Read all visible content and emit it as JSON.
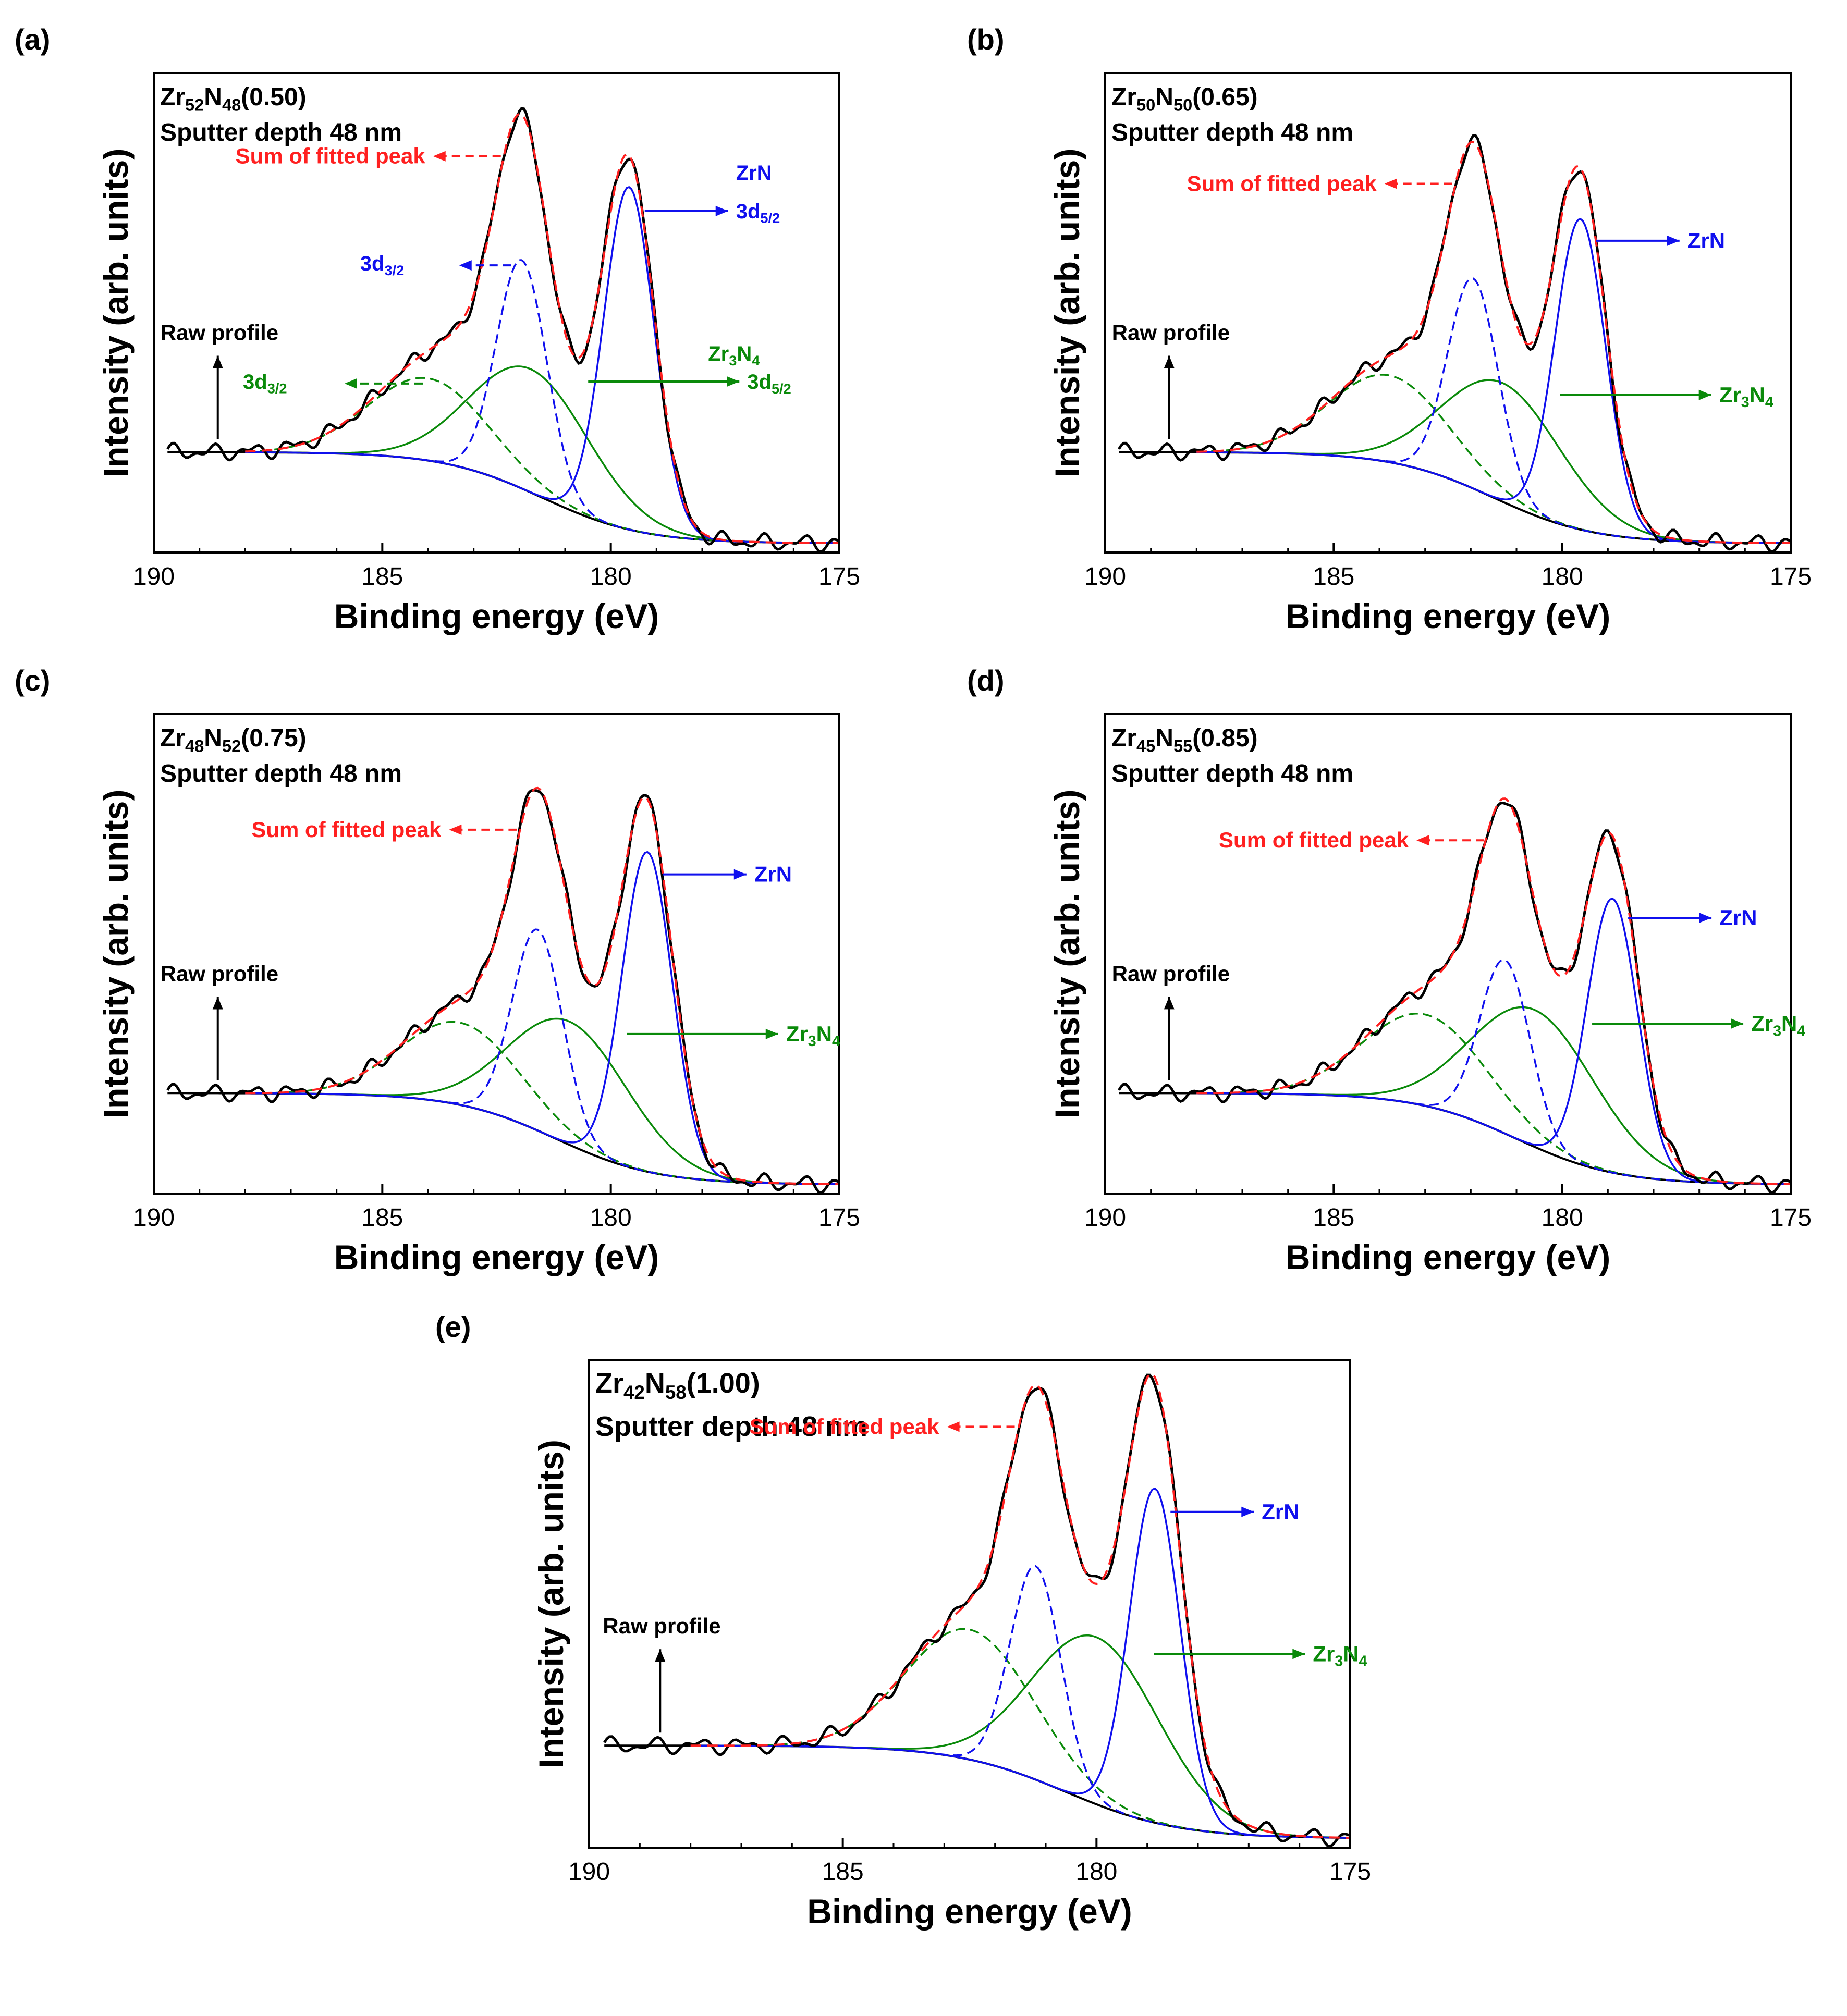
{
  "figure": {
    "description_labels": [
      "(a)",
      "(b)",
      "(c)",
      "(d)",
      "(e)"
    ]
  },
  "colors": {
    "raw": "#000000",
    "sum": "#ff2020",
    "zrn": "#1010ee",
    "zr3n4": "#0a8a0a"
  },
  "chart_data": [
    {
      "id": "a",
      "type": "line",
      "panel_label": "(a)",
      "sample_main": "Zr",
      "sample_sub1": "52",
      "sample_mid": "N",
      "sample_sub2": "48",
      "sample_tail": "(0.50)",
      "subtitle": "Sputter depth 48 nm",
      "xlabel": "Binding energy (eV)",
      "ylabel": "Intensity (arb. units)",
      "xlim": [
        190,
        175
      ],
      "ylim": [
        0,
        1.05
      ],
      "xticks": [
        "190",
        "185",
        "180",
        "175"
      ],
      "annotations": {
        "sum": "Sum of fitted peak",
        "raw": "Raw profile",
        "zrn": "ZrN",
        "zrn_3d52": "3d",
        "zrn_3d52_sub": "5/2",
        "zrn_3d32": "3d",
        "zrn_3d32_sub": "3/2",
        "zr3n4": "Zr",
        "zr3n4_sub1": "3",
        "zr3n4_mid": "N",
        "zr3n4_sub2": "4",
        "zr3n4_3d52": "3d",
        "zr3n4_3d52_sub": "5/2",
        "zr3n4_3d32": "3d",
        "zr3n4_3d32_sub": "3/2"
      },
      "peaks": {
        "zrn52": {
          "center": 179.6,
          "height": 0.75,
          "width": 0.55
        },
        "zrn32": {
          "center": 181.95,
          "height": 0.5,
          "width": 0.55
        },
        "zr3n4_52": {
          "center": 181.75,
          "height": 0.27,
          "width": 1.3
        },
        "zr3n4_32": {
          "center": 184.0,
          "height": 0.18,
          "width": 1.3
        }
      },
      "background": {
        "start": 0.22,
        "end": 0.02,
        "step_center": 181.5
      },
      "raw_start": 189.7,
      "fit_start": 188.0
    },
    {
      "id": "b",
      "type": "line",
      "panel_label": "(b)",
      "sample_main": "Zr",
      "sample_sub1": "50",
      "sample_mid": "N",
      "sample_sub2": "50",
      "sample_tail": "(0.65)",
      "subtitle": "Sputter depth 48 nm",
      "xlabel": "Binding energy (eV)",
      "ylabel": "Intensity (arb. units)",
      "xlim": [
        190,
        175
      ],
      "ylim": [
        0,
        1.05
      ],
      "xticks": [
        "190",
        "185",
        "180",
        "175"
      ],
      "annotations": {
        "sum": "Sum of fitted peak",
        "raw": "Raw profile",
        "zrn": "ZrN",
        "zr3n4": "Zr",
        "zr3n4_sub1": "3",
        "zr3n4_mid": "N",
        "zr3n4_sub2": "4"
      },
      "peaks": {
        "zrn52": {
          "center": 179.6,
          "height": 0.68,
          "width": 0.55
        },
        "zrn32": {
          "center": 181.95,
          "height": 0.46,
          "width": 0.55
        },
        "zr3n4_52": {
          "center": 181.3,
          "height": 0.26,
          "width": 1.3
        },
        "zr3n4_32": {
          "center": 183.8,
          "height": 0.19,
          "width": 1.3
        }
      },
      "background": {
        "start": 0.22,
        "end": 0.02,
        "step_center": 181.5
      },
      "raw_start": 189.7,
      "fit_start": 188.0
    },
    {
      "id": "c",
      "type": "line",
      "panel_label": "(c)",
      "sample_main": "Zr",
      "sample_sub1": "48",
      "sample_mid": "N",
      "sample_sub2": "52",
      "sample_tail": "(0.75)",
      "subtitle": "Sputter depth 48 nm",
      "xlabel": "Binding energy (eV)",
      "ylabel": "Intensity (arb. units)",
      "xlim": [
        190,
        175
      ],
      "ylim": [
        0,
        1.05
      ],
      "xticks": [
        "190",
        "185",
        "180",
        "175"
      ],
      "annotations": {
        "sum": "Sum of fitted peak",
        "raw": "Raw profile",
        "zrn": "ZrN",
        "zr3n4": "Zr",
        "zr3n4_sub1": "3",
        "zr3n4_mid": "N",
        "zr3n4_sub2": "4"
      },
      "peaks": {
        "zrn52": {
          "center": 179.2,
          "height": 0.7,
          "width": 0.55
        },
        "zrn32": {
          "center": 181.6,
          "height": 0.44,
          "width": 0.55
        },
        "zr3n4_52": {
          "center": 180.9,
          "height": 0.27,
          "width": 1.3
        },
        "zr3n4_32": {
          "center": 183.3,
          "height": 0.18,
          "width": 1.3
        }
      },
      "background": {
        "start": 0.22,
        "end": 0.02,
        "step_center": 181.2
      },
      "raw_start": 189.7,
      "fit_start": 188.0
    },
    {
      "id": "d",
      "type": "line",
      "panel_label": "(d)",
      "sample_main": "Zr",
      "sample_sub1": "45",
      "sample_mid": "N",
      "sample_sub2": "55",
      "sample_tail": "(0.85)",
      "subtitle": "Sputter depth 48 nm",
      "xlabel": "Binding energy (eV)",
      "ylabel": "Intensity (arb. units)",
      "xlim": [
        190,
        175
      ],
      "ylim": [
        0,
        1.05
      ],
      "xticks": [
        "190",
        "185",
        "180",
        "175"
      ],
      "annotations": {
        "sum": "Sum of fitted peak",
        "raw": "Raw profile",
        "zrn": "ZrN",
        "zr3n4": "Zr",
        "zr3n4_sub1": "3",
        "zr3n4_mid": "N",
        "zr3n4_sub2": "4"
      },
      "peaks": {
        "zrn52": {
          "center": 178.9,
          "height": 0.6,
          "width": 0.55
        },
        "zrn32": {
          "center": 181.25,
          "height": 0.38,
          "width": 0.55
        },
        "zr3n4_52": {
          "center": 180.6,
          "height": 0.3,
          "width": 1.35
        },
        "zr3n4_32": {
          "center": 183.0,
          "height": 0.2,
          "width": 1.35
        }
      },
      "background": {
        "start": 0.22,
        "end": 0.02,
        "step_center": 181.0
      },
      "raw_start": 189.7,
      "fit_start": 188.0
    },
    {
      "id": "e",
      "type": "line",
      "panel_label": "(e)",
      "sample_main": "Zr",
      "sample_sub1": "42",
      "sample_mid": "N",
      "sample_sub2": "58",
      "sample_tail": "(1.00)",
      "subtitle": "Sputter depth 48 nm",
      "xlabel": "Binding energy (eV)",
      "ylabel": "Intensity (arb. units)",
      "xlim": [
        190,
        175
      ],
      "ylim": [
        0,
        1.05
      ],
      "xticks": [
        "190",
        "185",
        "180",
        "175"
      ],
      "annotations": {
        "sum": "Sum of fitted peak",
        "raw": "Raw profile",
        "zrn": "ZrN",
        "zr3n4": "Zr",
        "zr3n4_sub1": "3",
        "zr3n4_mid": "N",
        "zr3n4_sub2": "4"
      },
      "peaks": {
        "zrn52": {
          "center": 178.85,
          "height": 0.72,
          "width": 0.5
        },
        "zrn32": {
          "center": 181.2,
          "height": 0.46,
          "width": 0.5
        },
        "zr3n4_52": {
          "center": 180.0,
          "height": 0.36,
          "width": 1.25
        },
        "zr3n4_32": {
          "center": 182.5,
          "height": 0.28,
          "width": 1.25
        }
      },
      "background": {
        "start": 0.22,
        "end": 0.02,
        "step_center": 180.6
      },
      "raw_start": 189.7,
      "fit_start": 188.0
    }
  ]
}
